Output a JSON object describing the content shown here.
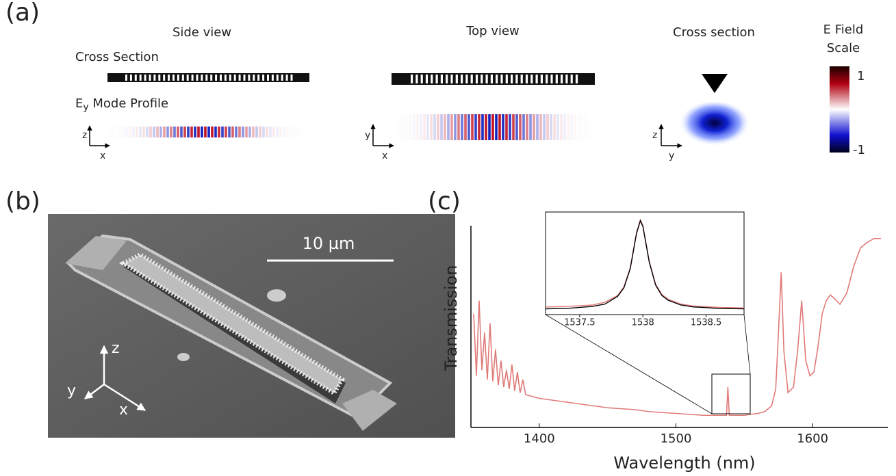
{
  "panel_a": {
    "label": "(a)",
    "side_view": "Side view",
    "top_view": "Top view",
    "cross_section_title": "Cross section",
    "scale_title": [
      "E Field",
      "Scale"
    ],
    "row_cross_section": "Cross Section",
    "mode_profile": {
      "symbol": "E",
      "subscript": "y",
      "text": " Mode Profile"
    },
    "colorbar": {
      "max": 1,
      "min": -1
    },
    "axes": {
      "side": [
        "z",
        "x"
      ],
      "top": [
        "y",
        "x"
      ],
      "cross": [
        "z",
        "y"
      ]
    }
  },
  "panel_b": {
    "label": "(b)",
    "scale_bar": "10 µm",
    "axes": [
      "z",
      "y",
      "x"
    ]
  },
  "panel_c": {
    "label": "(c)"
  },
  "chart_data": [
    {
      "type": "line",
      "xlabel": "Wavelength (nm)",
      "ylabel": "Transmission",
      "x": [
        1352,
        1354,
        1356,
        1358,
        1360,
        1362,
        1364,
        1366,
        1368,
        1370,
        1372,
        1374,
        1376,
        1378,
        1380,
        1382,
        1384,
        1386,
        1388,
        1390,
        1395,
        1400,
        1410,
        1420,
        1430,
        1440,
        1450,
        1460,
        1470,
        1480,
        1490,
        1500,
        1510,
        1520,
        1530,
        1536,
        1537,
        1538,
        1539,
        1540,
        1550,
        1560,
        1565,
        1570,
        1573,
        1575,
        1577,
        1579,
        1582,
        1586,
        1589,
        1592,
        1595,
        1598,
        1601,
        1604,
        1607,
        1610,
        1613,
        1616,
        1620,
        1625,
        1630,
        1635,
        1640,
        1645,
        1650
      ],
      "series": [
        {
          "color": "#e07a78",
          "values": [
            0.55,
            0.22,
            0.62,
            0.25,
            0.45,
            0.2,
            0.5,
            0.19,
            0.36,
            0.17,
            0.3,
            0.16,
            0.25,
            0.15,
            0.28,
            0.14,
            0.24,
            0.13,
            0.2,
            0.12,
            0.11,
            0.1,
            0.09,
            0.08,
            0.07,
            0.06,
            0.05,
            0.045,
            0.04,
            0.03,
            0.025,
            0.02,
            0.015,
            0.01,
            0.01,
            0.01,
            0.01,
            0.16,
            0.01,
            0.01,
            0.01,
            0.02,
            0.03,
            0.06,
            0.15,
            0.45,
            0.77,
            0.35,
            0.13,
            0.16,
            0.35,
            0.62,
            0.3,
            0.22,
            0.24,
            0.38,
            0.55,
            0.62,
            0.65,
            0.63,
            0.6,
            0.66,
            0.8,
            0.9,
            0.93,
            0.95,
            0.95
          ]
        }
      ],
      "xlim": [
        1350,
        1655
      ],
      "ylim": [
        0,
        1
      ],
      "xticks": [
        1400,
        1500,
        1600
      ]
    },
    {
      "type": "line",
      "x": [
        1537.23,
        1537.4,
        1537.6,
        1537.7,
        1537.8,
        1537.85,
        1537.9,
        1537.95,
        1537.98,
        1538.0,
        1538.05,
        1538.1,
        1538.15,
        1538.2,
        1538.3,
        1538.4,
        1538.6,
        1538.8
      ],
      "series": [
        {
          "color": "#e07a78",
          "values": [
            0.08,
            0.085,
            0.1,
            0.13,
            0.2,
            0.29,
            0.49,
            0.86,
            0.99,
            0.93,
            0.56,
            0.32,
            0.21,
            0.16,
            0.11,
            0.09,
            0.075,
            0.07
          ]
        },
        {
          "color": "#000000",
          "values": [
            0.06,
            0.065,
            0.085,
            0.11,
            0.19,
            0.28,
            0.48,
            0.85,
            0.98,
            0.92,
            0.55,
            0.31,
            0.2,
            0.15,
            0.1,
            0.08,
            0.065,
            0.06
          ]
        }
      ],
      "xlim": [
        1537.23,
        1538.8
      ],
      "ylim": [
        0,
        1
      ],
      "xticks": [
        1537.5,
        1538,
        1538.5
      ]
    }
  ]
}
